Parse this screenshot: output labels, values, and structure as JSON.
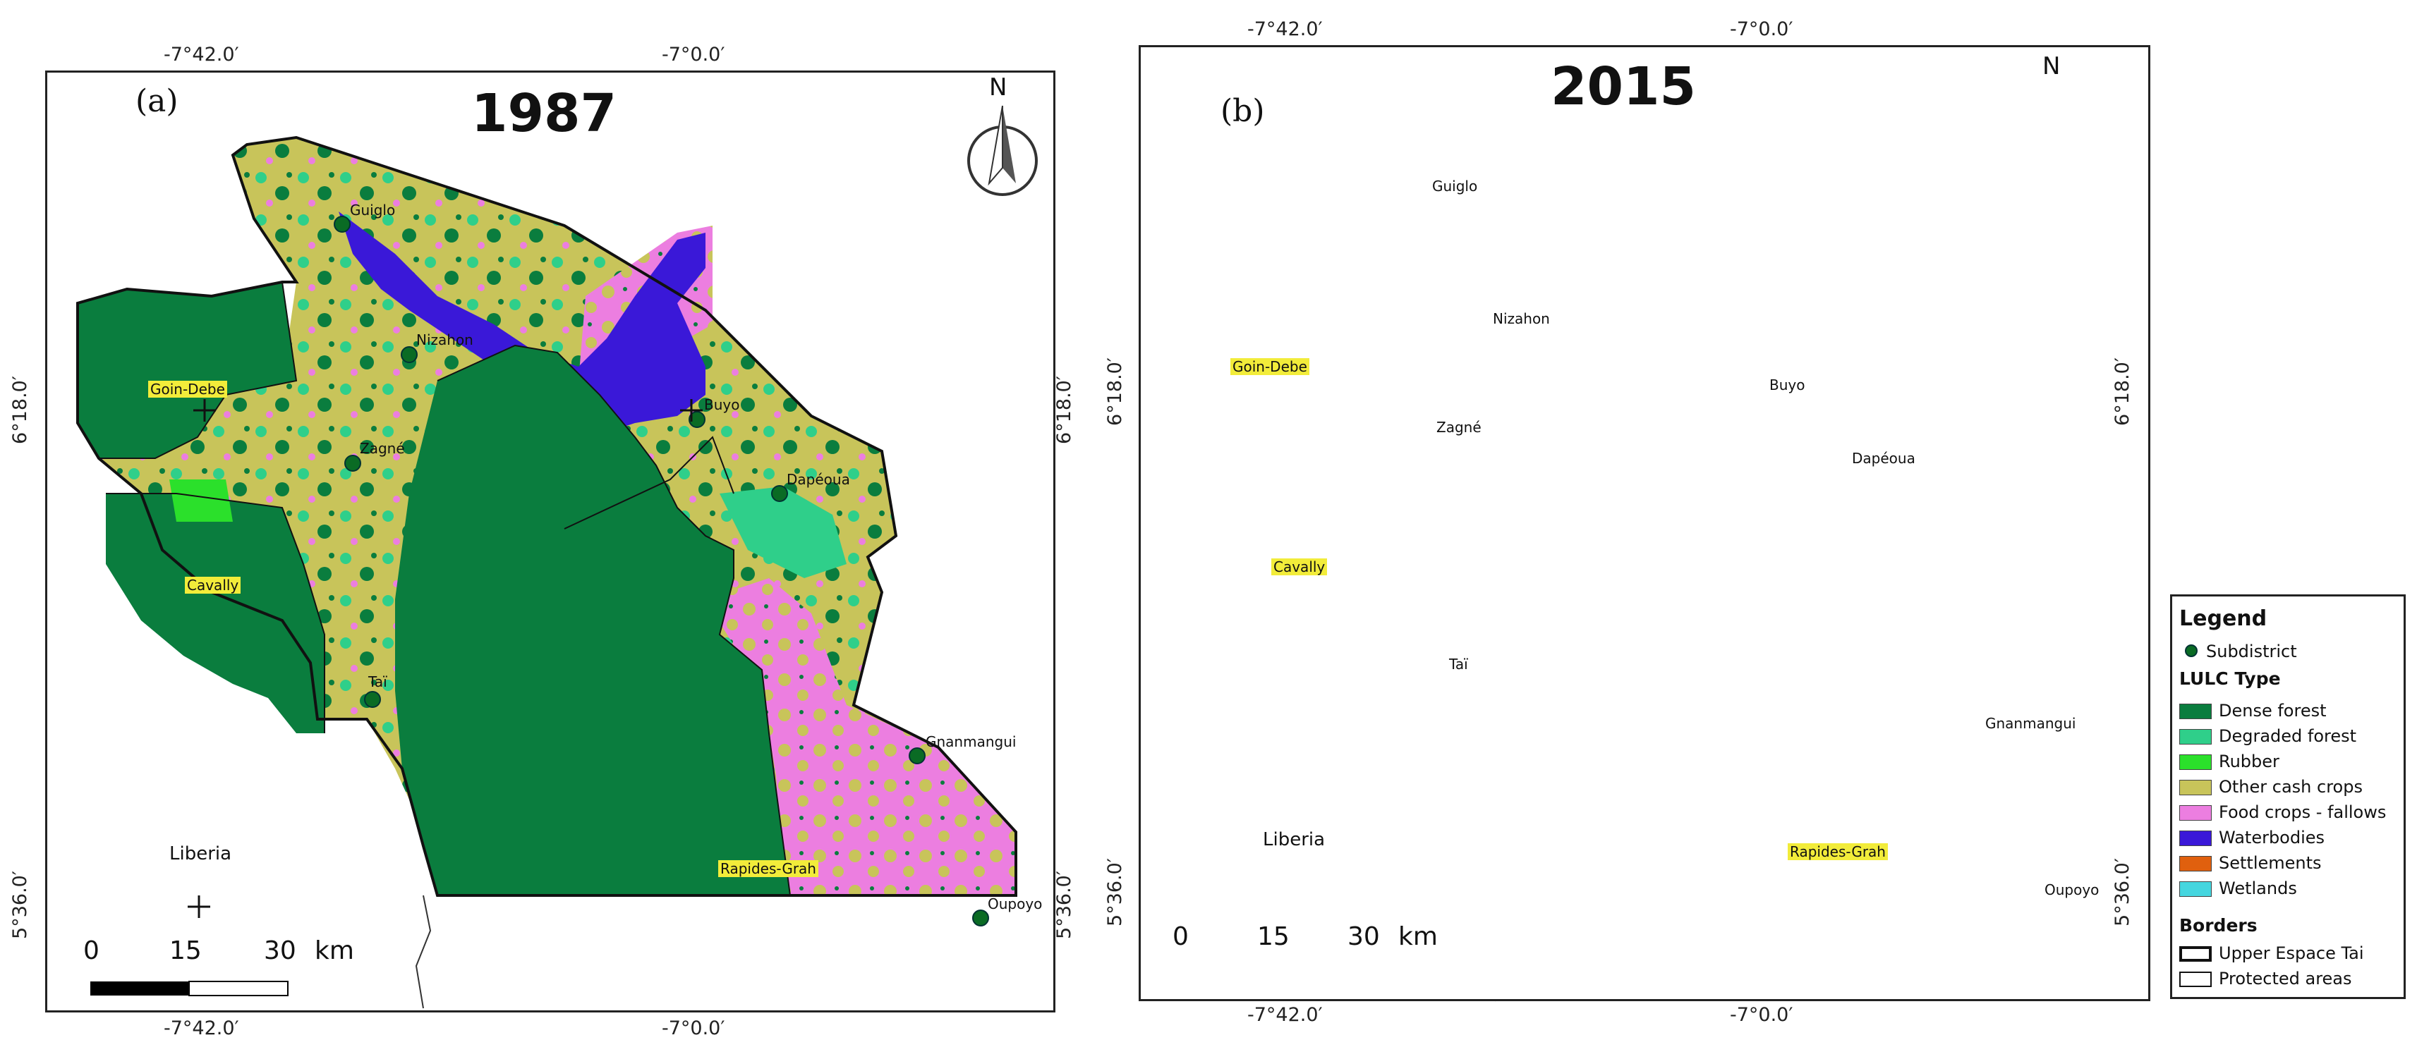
{
  "panels": [
    {
      "id": "a",
      "label": "(a)",
      "year": "1987",
      "coords": {
        "top_left": "-7°42.0′",
        "top_right": "-7°0.0′",
        "bottom_left": "-7°42.0′",
        "bottom_right": "-7°0.0′",
        "left_top": "6°18.0′",
        "left_bottom": "5°36.0′",
        "right_top": "6°18.0′",
        "right_bottom": "5°36.0′"
      },
      "places": [
        "Guiglo",
        "Nizahon",
        "Goin-Debe",
        "Zagné",
        "Buyo",
        "Dapéoua",
        "Cavally",
        "Taï",
        "Gnanmangui",
        "Rapides-Grah",
        "Oupoyo",
        "Liberia"
      ],
      "north": "N",
      "scale": {
        "zero": "0",
        "mid": "15",
        "max": "30",
        "unit": "km"
      }
    },
    {
      "id": "b",
      "label": "(b)",
      "year": "2015",
      "coords": {
        "top_left": "-7°42.0′",
        "top_right": "-7°0.0′",
        "bottom_left": "-7°42.0′",
        "bottom_right": "-7°0.0′",
        "left_top": "6°18.0′",
        "left_bottom": "5°36.0′",
        "right_top": "6°18.0′",
        "right_bottom": "5°36.0′"
      },
      "places": [
        "Guiglo",
        "Nizahon",
        "Goin-Debe",
        "Zagné",
        "Buyo",
        "Dapéoua",
        "Cavally",
        "Taï",
        "Gnanmangui",
        "Rapides-Grah",
        "Oupoyo",
        "Liberia"
      ],
      "north": "N",
      "scale": {
        "zero": "0",
        "mid": "15",
        "max": "30",
        "unit": "km"
      }
    }
  ],
  "legend": {
    "title": "Legend",
    "subdistrict": "Subdistrict",
    "lulc_heading": "LULC Type",
    "lulc": [
      {
        "label": "Dense forest",
        "color": "#0a7d3e"
      },
      {
        "label": "Degraded forest",
        "color": "#2fcf8a"
      },
      {
        "label": "Rubber",
        "color": "#2be02b"
      },
      {
        "label": "Other cash crops",
        "color": "#c8c45a"
      },
      {
        "label": "Food crops - fallows",
        "color": "#ec7ee0"
      },
      {
        "label": "Waterbodies",
        "color": "#3a18d8"
      },
      {
        "label": "Settlements",
        "color": "#e0600e"
      },
      {
        "label": "Wetlands",
        "color": "#45d6df"
      }
    ],
    "borders_heading": "Borders",
    "borders": [
      {
        "label": "Upper Espace Tai",
        "style": "thick"
      },
      {
        "label": "Protected areas",
        "style": "thin"
      }
    ]
  }
}
